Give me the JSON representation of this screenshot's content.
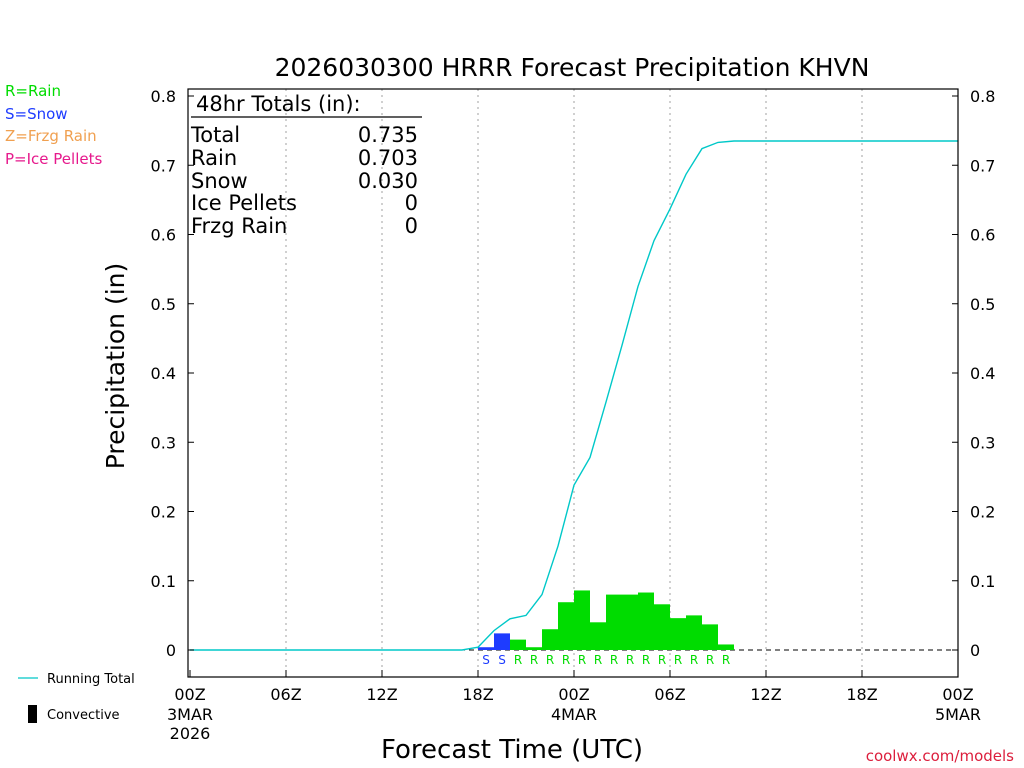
{
  "chart_data": {
    "type": "bar",
    "title": "2026030300 HRRR Forecast Precipitation KHVN",
    "xlabel": "Forecast Time (UTC)",
    "ylabel": "Precipitation (in)",
    "ylim": [
      0,
      0.8
    ],
    "xlim_hours": [
      0,
      48
    ],
    "y_ticks": [
      "0",
      "0.1",
      "0.2",
      "0.3",
      "0.4",
      "0.5",
      "0.6",
      "0.7",
      "0.8"
    ],
    "y_ticks_left": [
      "0",
      "0.1",
      "0.2",
      "0.3",
      "0.4",
      "0.5",
      "0.6",
      "0.7",
      "0.8"
    ],
    "x_ticks": [
      {
        "hour": 0,
        "label": "00Z",
        "date1": "3MAR",
        "date2": "2026"
      },
      {
        "hour": 6,
        "label": "06Z"
      },
      {
        "hour": 12,
        "label": "12Z"
      },
      {
        "hour": 18,
        "label": "18Z"
      },
      {
        "hour": 24,
        "label": "00Z",
        "date1": "4MAR"
      },
      {
        "hour": 30,
        "label": "06Z"
      },
      {
        "hour": 36,
        "label": "12Z"
      },
      {
        "hour": 42,
        "label": "18Z"
      },
      {
        "hour": 48,
        "label": "00Z",
        "date1": "5MAR"
      }
    ],
    "legend_top": [
      {
        "label": "R=Rain",
        "color": "#00dc00"
      },
      {
        "label": "S=Snow",
        "color": "#1e3cff"
      },
      {
        "label": "Z=Frzg Rain",
        "color": "#f0a050"
      },
      {
        "label": "P=Ice Pellets",
        "color": "#e6198c"
      }
    ],
    "legend_bottom": {
      "running_total": "Running Total",
      "convective": "Convective"
    },
    "totals": {
      "header": "48hr Totals (in):",
      "rows": [
        {
          "label": "Total",
          "value": "0.735"
        },
        {
          "label": "Rain",
          "value": "0.703"
        },
        {
          "label": "Snow",
          "value": "0.030"
        },
        {
          "label": "Ice Pellets",
          "value": "0"
        },
        {
          "label": "Frzg Rain",
          "value": "0"
        }
      ]
    },
    "bars": [
      {
        "hour": 18,
        "value": 0.004,
        "type": "S"
      },
      {
        "hour": 19,
        "value": 0.024,
        "type": "S"
      },
      {
        "hour": 20,
        "value": 0.015,
        "type": "R"
      },
      {
        "hour": 21,
        "value": 0.004,
        "type": "R"
      },
      {
        "hour": 22,
        "value": 0.03,
        "type": "R"
      },
      {
        "hour": 23,
        "value": 0.069,
        "type": "R"
      },
      {
        "hour": 24,
        "value": 0.086,
        "type": "R"
      },
      {
        "hour": 25,
        "value": 0.04,
        "type": "R"
      },
      {
        "hour": 26,
        "value": 0.08,
        "type": "R"
      },
      {
        "hour": 27,
        "value": 0.08,
        "type": "R"
      },
      {
        "hour": 28,
        "value": 0.083,
        "type": "R"
      },
      {
        "hour": 29,
        "value": 0.066,
        "type": "R"
      },
      {
        "hour": 30,
        "value": 0.046,
        "type": "R"
      },
      {
        "hour": 31,
        "value": 0.05,
        "type": "R"
      },
      {
        "hour": 32,
        "value": 0.037,
        "type": "R"
      },
      {
        "hour": 33,
        "value": 0.008,
        "type": "R"
      }
    ],
    "running_total": [
      [
        0,
        0
      ],
      [
        17,
        0
      ],
      [
        17.5,
        0.002
      ],
      [
        18,
        0.004
      ],
      [
        19,
        0.028
      ],
      [
        20,
        0.045
      ],
      [
        21,
        0.05
      ],
      [
        22,
        0.08
      ],
      [
        23,
        0.15
      ],
      [
        24,
        0.238
      ],
      [
        25,
        0.278
      ],
      [
        26,
        0.358
      ],
      [
        27,
        0.44
      ],
      [
        28,
        0.525
      ],
      [
        29,
        0.591
      ],
      [
        30,
        0.637
      ],
      [
        31,
        0.687
      ],
      [
        32,
        0.724
      ],
      [
        33,
        0.733
      ],
      [
        34,
        0.735
      ],
      [
        48,
        0.735
      ]
    ],
    "footer": "coolwx.com/models"
  }
}
